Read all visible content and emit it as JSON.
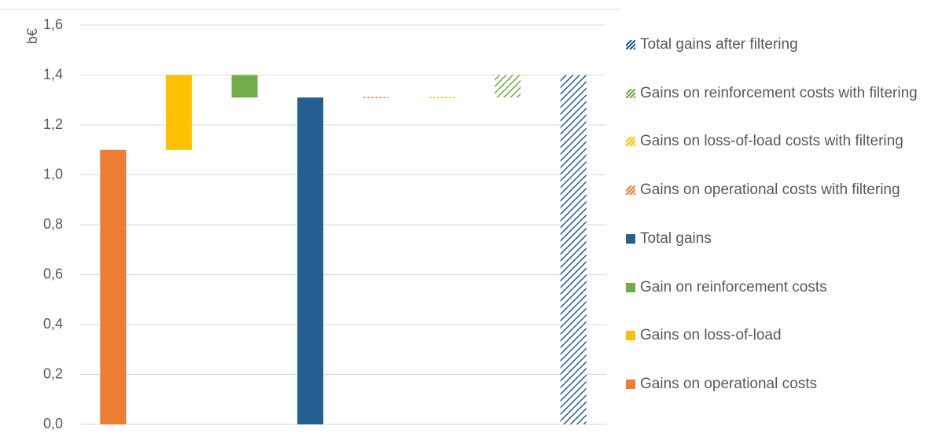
{
  "chart_data": {
    "type": "waterfall",
    "y_label": "b€",
    "categories": [
      null,
      null,
      null,
      null,
      null,
      null,
      null,
      null
    ],
    "series": [
      {
        "name": "Gains on operational costs",
        "color": "#ed7d31",
        "hatched": false,
        "total": false,
        "values": [
          1.1,
          null,
          null,
          null,
          null,
          null,
          null,
          null
        ]
      },
      {
        "name": "Gains on loss-of-load",
        "color": "#ffc000",
        "hatched": false,
        "total": false,
        "values": [
          null,
          0.3,
          null,
          null,
          null,
          null,
          null,
          null
        ]
      },
      {
        "name": "Gain on reinforcement costs",
        "color": "#70ad47",
        "hatched": false,
        "total": false,
        "values": [
          null,
          null,
          -0.09,
          null,
          null,
          null,
          null,
          null
        ]
      },
      {
        "name": "Total gains",
        "color": "#255e91",
        "hatched": false,
        "total": true,
        "values": [
          null,
          null,
          null,
          1.31,
          null,
          null,
          null,
          null
        ]
      },
      {
        "name": "Gains on operational costs with filtering",
        "color": "#ed7d31",
        "hatched": true,
        "total": false,
        "values": [
          null,
          null,
          null,
          null,
          0,
          null,
          null,
          null
        ]
      },
      {
        "name": "Gains on loss-of-load costs with filtering",
        "color": "#ffc000",
        "hatched": true,
        "total": false,
        "values": [
          null,
          null,
          null,
          null,
          null,
          0,
          null,
          null
        ]
      },
      {
        "name": "Gains on reinforcement costs with filtering",
        "color": "#70ad47",
        "hatched": true,
        "total": false,
        "values": [
          null,
          null,
          null,
          null,
          null,
          null,
          0.09,
          null
        ]
      },
      {
        "name": "Total gains after filtering",
        "color": "#255e91",
        "hatched": true,
        "total": true,
        "values": [
          null,
          null,
          null,
          null,
          null,
          null,
          null,
          1.4
        ]
      }
    ],
    "ylim": [
      0,
      1.6
    ],
    "yticks": [
      {
        "value": 0,
        "label": "0,0"
      },
      {
        "value": 0.2,
        "label": "0,2"
      },
      {
        "value": 0.4,
        "label": "0,4"
      },
      {
        "value": 0.6,
        "label": "0,6"
      },
      {
        "value": 0.8,
        "label": "0,8"
      },
      {
        "value": 1.0,
        "label": "1,0"
      },
      {
        "value": 1.2,
        "label": "1,2"
      },
      {
        "value": 1.4,
        "label": "1,4"
      },
      {
        "value": 1.6,
        "label": "1,6"
      }
    ],
    "grid": true
  }
}
